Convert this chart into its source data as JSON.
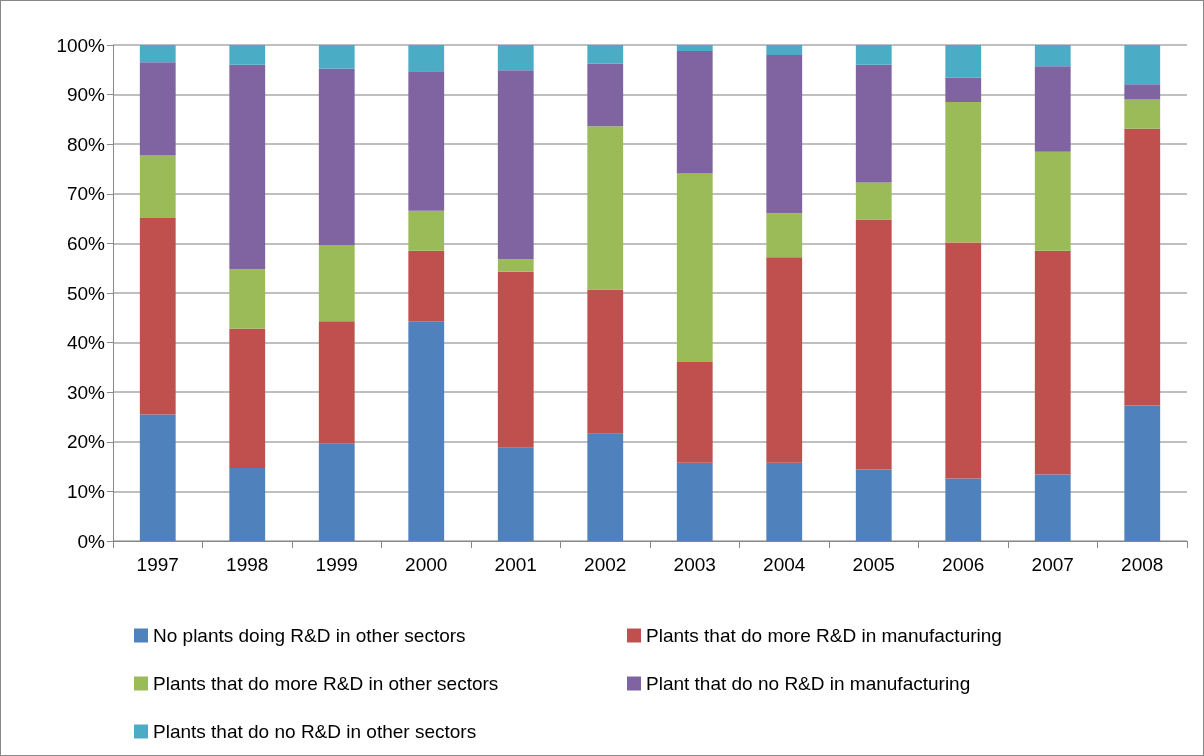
{
  "chart_data": {
    "type": "bar",
    "stacked": true,
    "categories": [
      "1997",
      "1998",
      "1999",
      "2000",
      "2001",
      "2002",
      "2003",
      "2004",
      "2005",
      "2006",
      "2007",
      "2008"
    ],
    "ylim": [
      0,
      100
    ],
    "yticks": [
      {
        "value": 0,
        "label": "0%"
      },
      {
        "value": 10,
        "label": "10%"
      },
      {
        "value": 20,
        "label": "20%"
      },
      {
        "value": 30,
        "label": "30%"
      },
      {
        "value": 40,
        "label": "40%"
      },
      {
        "value": 50,
        "label": "50%"
      },
      {
        "value": 60,
        "label": "60%"
      },
      {
        "value": 70,
        "label": "70%"
      },
      {
        "value": 80,
        "label": "80%"
      },
      {
        "value": 90,
        "label": "90%"
      },
      {
        "value": 100,
        "label": "100%"
      }
    ],
    "grid": "y",
    "legend": "bottom",
    "series": [
      {
        "name": "No plants doing R&D in other sectors",
        "color": "#4f81bd",
        "values": [
          25.5,
          14.7,
          19.6,
          44.3,
          18.8,
          21.6,
          15.8,
          15.8,
          14.4,
          12.6,
          13.4,
          27.3
        ]
      },
      {
        "name": "Plants that do more R&D in manufacturing",
        "color": "#c0504d",
        "values": [
          39.6,
          28.1,
          24.7,
          14.2,
          35.5,
          29.1,
          20.3,
          41.4,
          50.4,
          47.6,
          45.1,
          55.8
        ]
      },
      {
        "name": "Plants that do more R&D in other sectors",
        "color": "#9bbb59",
        "values": [
          12.6,
          12.0,
          15.4,
          8.1,
          2.5,
          32.9,
          38.0,
          8.9,
          7.5,
          28.3,
          20.0,
          5.9
        ]
      },
      {
        "name": "Plant that do no R&D in manufacturing",
        "color": "#8064a2",
        "values": [
          18.8,
          41.2,
          35.5,
          28.1,
          38.1,
          12.6,
          24.7,
          31.9,
          23.7,
          4.9,
          17.2,
          3.1
        ]
      },
      {
        "name": "Plants that do no R&D in other sectors",
        "color": "#4bacc6",
        "values": [
          3.5,
          4.0,
          4.8,
          5.3,
          5.1,
          3.8,
          1.2,
          2.0,
          4.0,
          6.6,
          4.3,
          7.9
        ]
      }
    ]
  }
}
